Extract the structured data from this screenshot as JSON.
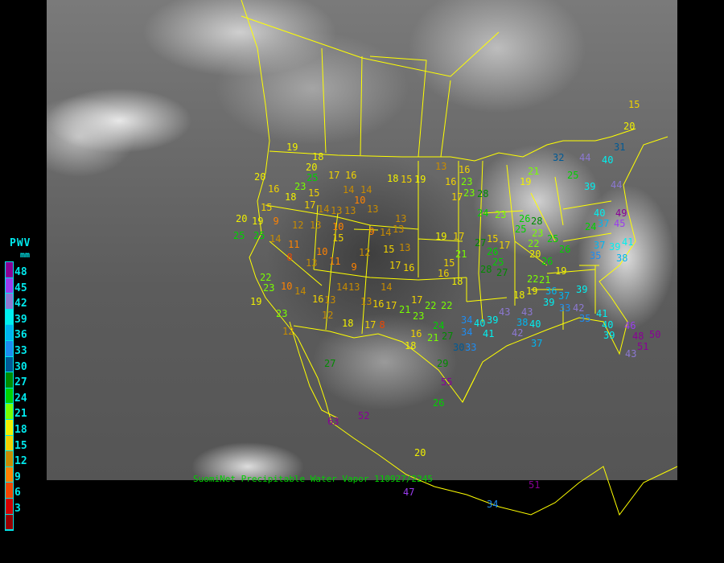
{
  "caption": "SuomiNet Precipitable Water Vapor 110927/2245",
  "legend": {
    "title": "PWV",
    "unit": "mm",
    "labels": [
      "48",
      "45",
      "42",
      "39",
      "36",
      "33",
      "30",
      "27",
      "24",
      "21",
      "18",
      "15",
      "12",
      "9",
      "6",
      "3"
    ],
    "colors": [
      "#8a0096",
      "#9b3cf0",
      "#8c78d2",
      "#00f0f0",
      "#00b4f0",
      "#1e8cf0",
      "#005a96",
      "#008c00",
      "#00d200",
      "#78ff00",
      "#f0f000",
      "#f0d200",
      "#c88c00",
      "#ff8200",
      "#f04600",
      "#d20000",
      "#960000"
    ]
  },
  "stations": [
    19,
    18,
    20,
    20,
    25,
    16,
    23,
    18,
    15,
    17,
    16,
    14,
    14,
    10,
    15,
    17,
    14,
    13,
    13,
    13,
    18,
    15,
    19,
    13,
    16,
    16,
    23,
    17,
    20,
    19,
    9,
    12,
    13,
    10,
    15,
    9,
    13,
    13,
    14,
    15,
    13,
    12,
    25,
    25,
    14,
    11,
    8,
    10,
    11,
    13,
    9,
    17,
    16,
    19,
    17,
    21,
    15,
    16,
    18,
    22,
    23,
    19,
    10,
    14,
    16,
    13,
    14,
    13,
    13,
    16,
    17,
    21,
    17,
    14,
    22,
    22,
    23,
    23,
    12,
    18,
    17,
    8,
    12,
    24,
    27,
    16,
    21,
    18,
    34,
    40,
    34,
    30,
    33,
    41,
    27,
    29,
    55,
    26,
    20,
    34,
    51,
    63,
    52,
    47,
    32,
    44,
    40,
    31,
    21,
    19,
    25,
    28,
    23,
    24,
    23,
    26,
    28,
    25,
    23,
    22,
    25,
    26,
    20,
    26,
    27,
    15,
    17,
    26,
    25,
    28,
    27,
    21,
    19,
    18,
    19,
    22,
    36,
    39,
    37,
    33,
    42,
    43,
    43,
    39,
    38,
    42,
    40,
    37,
    35,
    41,
    40,
    39,
    46,
    48,
    50,
    51,
    43,
    37,
    39,
    35,
    38,
    41,
    39,
    44,
    40,
    37,
    49,
    24,
    45,
    39,
    15,
    20
  ]
}
